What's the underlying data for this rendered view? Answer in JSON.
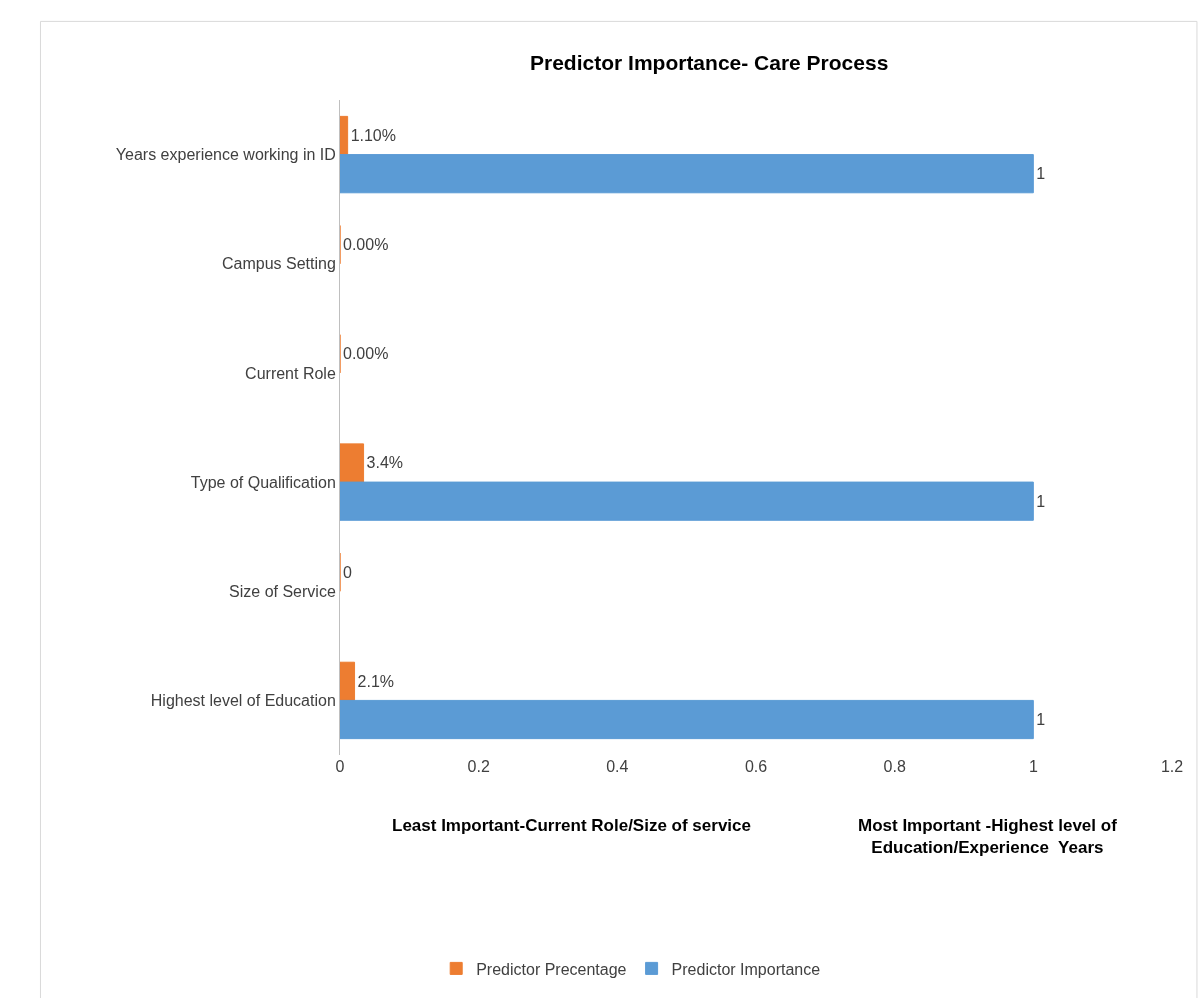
{
  "chart_data": {
    "type": "bar",
    "orientation": "horizontal",
    "title": "Predictor Importance- Care Process",
    "categories": [
      "Years experience working in ID",
      "Campus Setting",
      "Current Role",
      "Type of Qualification",
      "Size of Service",
      "Highest level of Education"
    ],
    "series": [
      {
        "name": "Predictor Precentage",
        "color": "#ed7d31",
        "values": [
          0.011,
          0,
          0,
          0.034,
          0,
          0.021
        ],
        "value_labels": [
          "1.10%",
          "0.00%",
          "0.00%",
          "3.4%",
          "0",
          "2.1%"
        ]
      },
      {
        "name": "Predictor Importance",
        "color": "#5b9bd5",
        "values": [
          1,
          null,
          null,
          1,
          null,
          1
        ],
        "value_labels": [
          "1",
          null,
          null,
          "1",
          null,
          "1"
        ]
      }
    ],
    "xlim": [
      0,
      1.2
    ],
    "xticks": [
      0,
      0.2,
      0.4,
      0.6,
      0.8,
      1,
      1.2
    ],
    "grid": false,
    "legend": "bottom",
    "annotations": [
      "Least Important-Current Role/Size of service",
      "Most Important -Highest level of\nEducation/Experience  Years"
    ]
  }
}
